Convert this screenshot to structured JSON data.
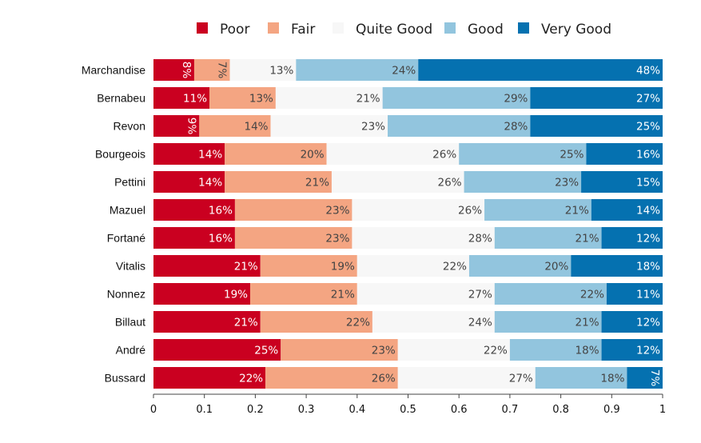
{
  "chart_data": {
    "type": "bar",
    "orientation": "horizontal",
    "stacked": true,
    "normalized": true,
    "legend_position": "top",
    "xlim": [
      0,
      1
    ],
    "x_ticks": [
      "0",
      "0.1",
      "0.2",
      "0.3",
      "0.4",
      "0.5",
      "0.6",
      "0.7",
      "0.8",
      "0.9",
      "1"
    ],
    "categories": [
      "Marchandise",
      "Bernabeu",
      "Revon",
      "Bourgeois",
      "Pettini",
      "Mazuel",
      "Fortané",
      "Vitalis",
      "Nonnez",
      "Billaut",
      "André",
      "Bussard"
    ],
    "series": [
      {
        "name": "Poor",
        "color": "#ca0020",
        "label_color": "#ffffff",
        "values": [
          0.08,
          0.11,
          0.09,
          0.14,
          0.14,
          0.16,
          0.16,
          0.21,
          0.19,
          0.21,
          0.25,
          0.22
        ],
        "labels": [
          "8%",
          "11%",
          "9%",
          "14%",
          "14%",
          "16%",
          "16%",
          "21%",
          "19%",
          "21%",
          "25%",
          "22%"
        ],
        "rotated": [
          true,
          false,
          true,
          false,
          false,
          false,
          false,
          false,
          false,
          false,
          false,
          false
        ]
      },
      {
        "name": "Fair",
        "color": "#f4a582",
        "label_color": "#444444",
        "values": [
          0.07,
          0.13,
          0.14,
          0.2,
          0.21,
          0.23,
          0.23,
          0.19,
          0.21,
          0.22,
          0.23,
          0.26
        ],
        "labels": [
          "7%",
          "13%",
          "14%",
          "20%",
          "21%",
          "23%",
          "23%",
          "19%",
          "21%",
          "22%",
          "23%",
          "26%"
        ],
        "rotated": [
          true,
          false,
          false,
          false,
          false,
          false,
          false,
          false,
          false,
          false,
          false,
          false
        ]
      },
      {
        "name": "Quite Good",
        "color": "#f7f7f7",
        "label_color": "#444444",
        "values": [
          0.13,
          0.21,
          0.23,
          0.26,
          0.26,
          0.26,
          0.28,
          0.22,
          0.27,
          0.24,
          0.22,
          0.27
        ],
        "labels": [
          "13%",
          "21%",
          "23%",
          "26%",
          "26%",
          "26%",
          "28%",
          "22%",
          "27%",
          "24%",
          "22%",
          "27%"
        ],
        "rotated": [
          false,
          false,
          false,
          false,
          false,
          false,
          false,
          false,
          false,
          false,
          false,
          false
        ]
      },
      {
        "name": "Good",
        "color": "#92c5de",
        "label_color": "#444444",
        "values": [
          0.24,
          0.29,
          0.28,
          0.25,
          0.23,
          0.21,
          0.21,
          0.2,
          0.22,
          0.21,
          0.18,
          0.18
        ],
        "labels": [
          "24%",
          "29%",
          "28%",
          "25%",
          "23%",
          "21%",
          "21%",
          "20%",
          "22%",
          "21%",
          "18%",
          "18%"
        ],
        "rotated": [
          false,
          false,
          false,
          false,
          false,
          false,
          false,
          false,
          false,
          false,
          false,
          false
        ]
      },
      {
        "name": "Very Good",
        "color": "#0571b0",
        "label_color": "#ffffff",
        "values": [
          0.48,
          0.27,
          0.25,
          0.16,
          0.15,
          0.14,
          0.12,
          0.18,
          0.11,
          0.12,
          0.12,
          0.07
        ],
        "labels": [
          "48%",
          "27%",
          "25%",
          "16%",
          "15%",
          "14%",
          "12%",
          "18%",
          "11%",
          "12%",
          "12%",
          "7%"
        ],
        "rotated": [
          false,
          false,
          false,
          false,
          false,
          false,
          false,
          false,
          false,
          false,
          false,
          true
        ]
      }
    ]
  }
}
